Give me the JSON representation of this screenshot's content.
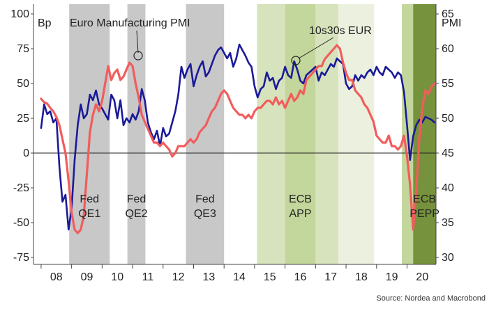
{
  "chart_data": {
    "type": "line",
    "y_left_unit": "Bp",
    "y_right_label": "PMI",
    "ylim_left": [
      -75,
      100
    ],
    "ylim_right": [
      30,
      65
    ],
    "x_ticks": [
      "08",
      "09",
      "10",
      "11",
      "12",
      "13",
      "14",
      "15",
      "16",
      "17",
      "18",
      "19",
      "20"
    ],
    "y_left_ticks": [
      100,
      75,
      50,
      25,
      0,
      -25,
      -50,
      -75
    ],
    "y_right_ticks": [
      65,
      60,
      55,
      50,
      45,
      40,
      35,
      30
    ],
    "source": "Source: Nordea and Macrobond",
    "annotations": {
      "pmi_label": "Euro Manufacturing PMI",
      "spread_label": "10s30s EUR"
    },
    "shaded_periods": [
      {
        "start": 2008.92,
        "end": 2010.25,
        "color": "#c8c8c8",
        "label": [
          "Fed",
          "QE1"
        ]
      },
      {
        "start": 2010.83,
        "end": 2011.42,
        "color": "#c8c8c8",
        "label": [
          "Fed",
          "QE2"
        ]
      },
      {
        "start": 2012.75,
        "end": 2014.0,
        "color": "#c8c8c8",
        "label": [
          "Fed",
          "QE3"
        ]
      },
      {
        "start": 2015.08,
        "end": 2016.0,
        "color": "#d6e3bc",
        "label": []
      },
      {
        "start": 2016.0,
        "end": 2017.0,
        "color": "#c3d69b",
        "label": [
          "ECB",
          "APP"
        ]
      },
      {
        "start": 2017.0,
        "end": 2017.75,
        "color": "#d6e3bc",
        "label": []
      },
      {
        "start": 2017.75,
        "end": 2018.92,
        "color": "#ebf1de",
        "label": []
      },
      {
        "start": 2019.83,
        "end": 2020.2,
        "color": "#c3d69b",
        "label": []
      },
      {
        "start": 2020.2,
        "end": 2021.0,
        "color": "#76923c",
        "label": [
          "ECB",
          "PEPP"
        ]
      }
    ],
    "series": [
      {
        "name": "10s30s EUR",
        "axis": "left",
        "color": "#1a1a99",
        "x": [
          2008.0,
          2008.1,
          2008.2,
          2008.3,
          2008.4,
          2008.5,
          2008.6,
          2008.7,
          2008.8,
          2008.9,
          2009.0,
          2009.1,
          2009.2,
          2009.3,
          2009.4,
          2009.5,
          2009.6,
          2009.7,
          2009.8,
          2009.9,
          2010.0,
          2010.1,
          2010.2,
          2010.3,
          2010.4,
          2010.5,
          2010.6,
          2010.7,
          2010.8,
          2010.9,
          2011.0,
          2011.1,
          2011.2,
          2011.3,
          2011.4,
          2011.5,
          2011.6,
          2011.7,
          2011.8,
          2011.9,
          2012.0,
          2012.1,
          2012.2,
          2012.3,
          2012.4,
          2012.5,
          2012.6,
          2012.7,
          2012.8,
          2012.9,
          2013.0,
          2013.1,
          2013.2,
          2013.3,
          2013.4,
          2013.5,
          2013.6,
          2013.7,
          2013.8,
          2013.9,
          2014.0,
          2014.1,
          2014.2,
          2014.3,
          2014.4,
          2014.5,
          2014.6,
          2014.7,
          2014.8,
          2014.9,
          2015.0,
          2015.1,
          2015.2,
          2015.3,
          2015.4,
          2015.5,
          2015.6,
          2015.7,
          2015.8,
          2015.9,
          2016.0,
          2016.1,
          2016.2,
          2016.3,
          2016.4,
          2016.5,
          2016.6,
          2016.7,
          2016.8,
          2016.9,
          2017.0,
          2017.1,
          2017.2,
          2017.3,
          2017.4,
          2017.5,
          2017.6,
          2017.7,
          2017.8,
          2017.9,
          2018.0,
          2018.1,
          2018.2,
          2018.3,
          2018.4,
          2018.5,
          2018.6,
          2018.7,
          2018.8,
          2018.9,
          2019.0,
          2019.1,
          2019.2,
          2019.3,
          2019.4,
          2019.5,
          2019.6,
          2019.7,
          2019.8,
          2019.9,
          2020.0,
          2020.1,
          2020.2,
          2020.3,
          2020.4,
          2020.5,
          2020.6,
          2020.7,
          2020.8,
          2020.9
        ],
        "values": [
          18,
          35,
          28,
          30,
          22,
          25,
          -10,
          -35,
          -30,
          -55,
          -40,
          -5,
          20,
          35,
          25,
          28,
          42,
          38,
          45,
          35,
          32,
          28,
          24,
          42,
          38,
          25,
          38,
          20,
          25,
          22,
          28,
          24,
          30,
          46,
          38,
          22,
          15,
          10,
          16,
          5,
          18,
          12,
          14,
          22,
          30,
          42,
          62,
          54,
          60,
          64,
          48,
          56,
          62,
          66,
          55,
          58,
          64,
          70,
          74,
          76,
          72,
          68,
          72,
          62,
          68,
          78,
          74,
          70,
          65,
          62,
          48,
          40,
          46,
          48,
          58,
          52,
          54,
          46,
          52,
          54,
          62,
          56,
          54,
          66,
          60,
          52,
          50,
          56,
          58,
          60,
          62,
          52,
          58,
          56,
          60,
          64,
          62,
          68,
          66,
          64,
          50,
          46,
          48,
          56,
          52,
          56,
          54,
          58,
          60,
          56,
          62,
          58,
          56,
          62,
          60,
          58,
          54,
          58,
          56,
          44,
          20,
          -5,
          12,
          20,
          24,
          22,
          26,
          25,
          24,
          22
        ]
      },
      {
        "name": "Euro Manufacturing PMI",
        "axis": "right",
        "color": "#f25c5c",
        "x": [
          2008.0,
          2008.1,
          2008.2,
          2008.3,
          2008.4,
          2008.5,
          2008.6,
          2008.7,
          2008.8,
          2008.9,
          2009.0,
          2009.1,
          2009.2,
          2009.3,
          2009.4,
          2009.5,
          2009.6,
          2009.7,
          2009.8,
          2009.9,
          2010.0,
          2010.1,
          2010.2,
          2010.3,
          2010.4,
          2010.5,
          2010.6,
          2010.7,
          2010.8,
          2010.9,
          2011.0,
          2011.1,
          2011.2,
          2011.3,
          2011.4,
          2011.5,
          2011.6,
          2011.7,
          2011.8,
          2011.9,
          2012.0,
          2012.1,
          2012.2,
          2012.3,
          2012.4,
          2012.5,
          2012.6,
          2012.7,
          2012.8,
          2012.9,
          2013.0,
          2013.1,
          2013.2,
          2013.3,
          2013.4,
          2013.5,
          2013.6,
          2013.7,
          2013.8,
          2013.9,
          2014.0,
          2014.1,
          2014.2,
          2014.3,
          2014.4,
          2014.5,
          2014.6,
          2014.7,
          2014.8,
          2014.9,
          2015.0,
          2015.1,
          2015.2,
          2015.3,
          2015.4,
          2015.5,
          2015.6,
          2015.7,
          2015.8,
          2015.9,
          2016.0,
          2016.1,
          2016.2,
          2016.3,
          2016.4,
          2016.5,
          2016.6,
          2016.7,
          2016.8,
          2016.9,
          2017.0,
          2017.1,
          2017.2,
          2017.3,
          2017.4,
          2017.5,
          2017.6,
          2017.7,
          2017.8,
          2017.9,
          2018.0,
          2018.1,
          2018.2,
          2018.3,
          2018.4,
          2018.5,
          2018.6,
          2018.7,
          2018.8,
          2018.9,
          2019.0,
          2019.1,
          2019.2,
          2019.3,
          2019.4,
          2019.5,
          2019.6,
          2019.7,
          2019.8,
          2019.9,
          2020.0,
          2020.1,
          2020.2,
          2020.3,
          2020.4,
          2020.5,
          2020.6,
          2020.7,
          2020.8,
          2020.9
        ],
        "values": [
          52.8,
          52.3,
          52.1,
          51.5,
          51.0,
          50.2,
          49.0,
          47.0,
          45.0,
          41.0,
          36.5,
          34.0,
          33.5,
          34.0,
          36.0,
          42.0,
          48.0,
          50.5,
          52.0,
          51.0,
          52.5,
          55.0,
          57.5,
          55.5,
          56.5,
          57.0,
          55.5,
          56.0,
          57.0,
          58.0,
          57.5,
          55.0,
          53.0,
          50.5,
          49.5,
          48.5,
          47.5,
          46.5,
          46.5,
          46.0,
          46.5,
          46.0,
          45.5,
          44.5,
          45.0,
          46.0,
          46.0,
          46.0,
          46.5,
          47.0,
          46.5,
          47.0,
          48.0,
          48.5,
          49.0,
          50.0,
          51.0,
          51.5,
          52.5,
          53.5,
          54.0,
          53.5,
          52.5,
          51.5,
          51.0,
          50.5,
          50.5,
          50.0,
          50.5,
          50.0,
          51.0,
          51.5,
          51.5,
          52.0,
          52.5,
          52.5,
          52.0,
          53.0,
          52.0,
          52.5,
          51.5,
          52.5,
          53.5,
          52.5,
          53.0,
          54.0,
          53.5,
          55.5,
          56.0,
          56.5,
          57.0,
          57.5,
          57.5,
          58.5,
          59.0,
          59.5,
          60.0,
          60.5,
          60.0,
          58.0,
          56.5,
          55.5,
          55.5,
          54.0,
          53.5,
          53.0,
          52.0,
          51.5,
          50.5,
          49.5,
          47.5,
          47.0,
          46.5,
          46.5,
          47.5,
          46.0,
          46.0,
          45.5,
          46.0,
          47.5,
          44.5,
          40.5,
          34.0,
          39.5,
          47.0,
          51.5,
          54.0,
          53.5,
          54.5,
          55.0
        ]
      }
    ]
  }
}
